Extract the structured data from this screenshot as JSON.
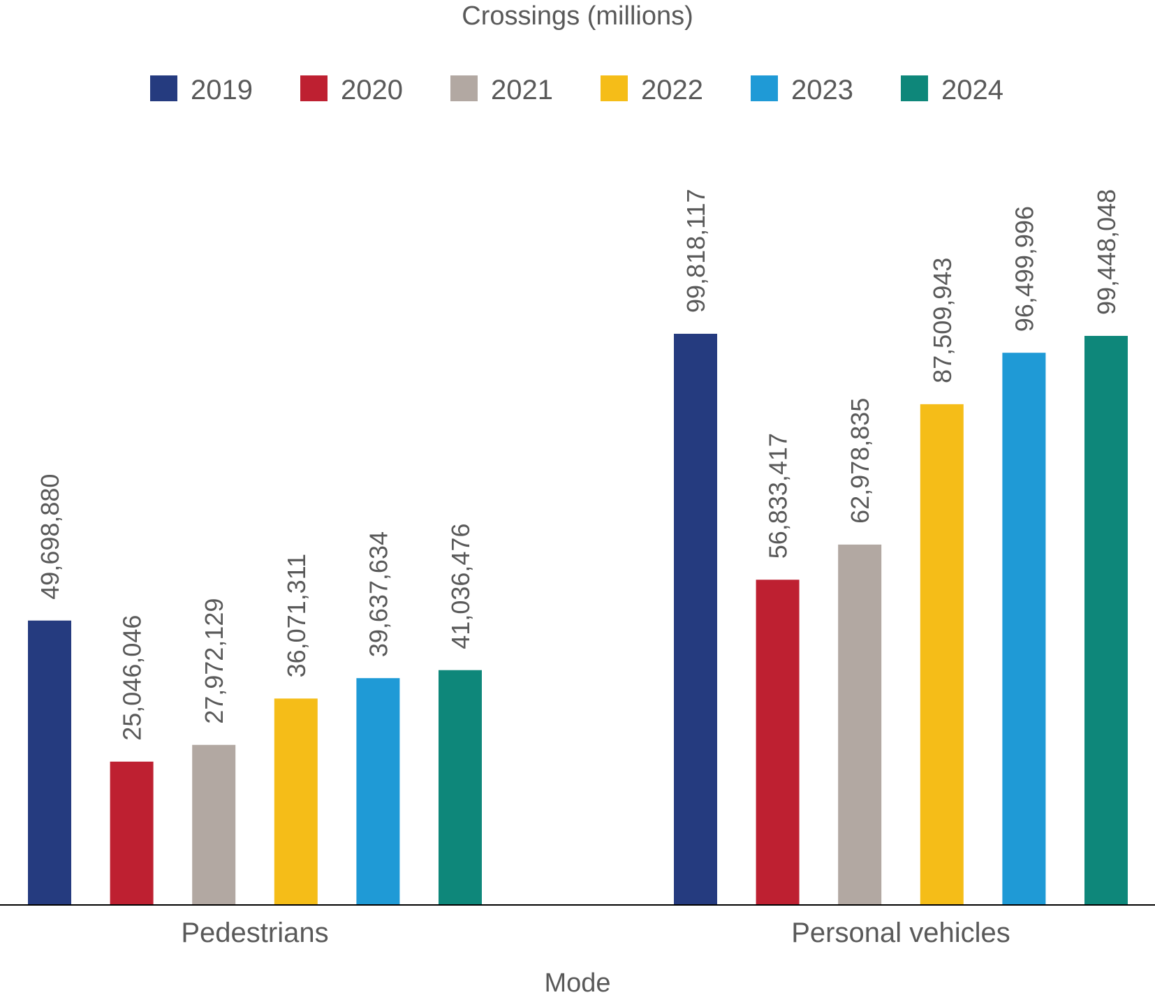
{
  "chart_data": {
    "type": "bar",
    "title": "Crossings (millions)",
    "xlabel": "Mode",
    "ylabel": "",
    "categories": [
      "Pedestrians",
      "Personal vehicles"
    ],
    "series": [
      {
        "name": "2019",
        "color": "#253b7f",
        "values": [
          49698880,
          99818117
        ]
      },
      {
        "name": "2020",
        "color": "#be2031",
        "values": [
          25046046,
          56833417
        ]
      },
      {
        "name": "2021",
        "color": "#b2a8a2",
        "values": [
          27972129,
          62978835
        ]
      },
      {
        "name": "2022",
        "color": "#f5bd18",
        "values": [
          36071311,
          87509943
        ]
      },
      {
        "name": "2023",
        "color": "#1f9ad6",
        "values": [
          39637634,
          96499996
        ]
      },
      {
        "name": "2024",
        "color": "#0e877a",
        "values": [
          41036476,
          99448048
        ]
      }
    ],
    "data_labels": [
      [
        "49,698,880",
        "99,818,117"
      ],
      [
        "25,046,046",
        "56,833,417"
      ],
      [
        "27,972,129",
        "62,978,835"
      ],
      [
        "36,071,311",
        "87,509,943"
      ],
      [
        "39,637,634",
        "96,499,996"
      ],
      [
        "41,036,476",
        "99,448,048"
      ]
    ],
    "ylim": [
      0,
      99818117
    ],
    "grid": false,
    "legend": "top"
  }
}
